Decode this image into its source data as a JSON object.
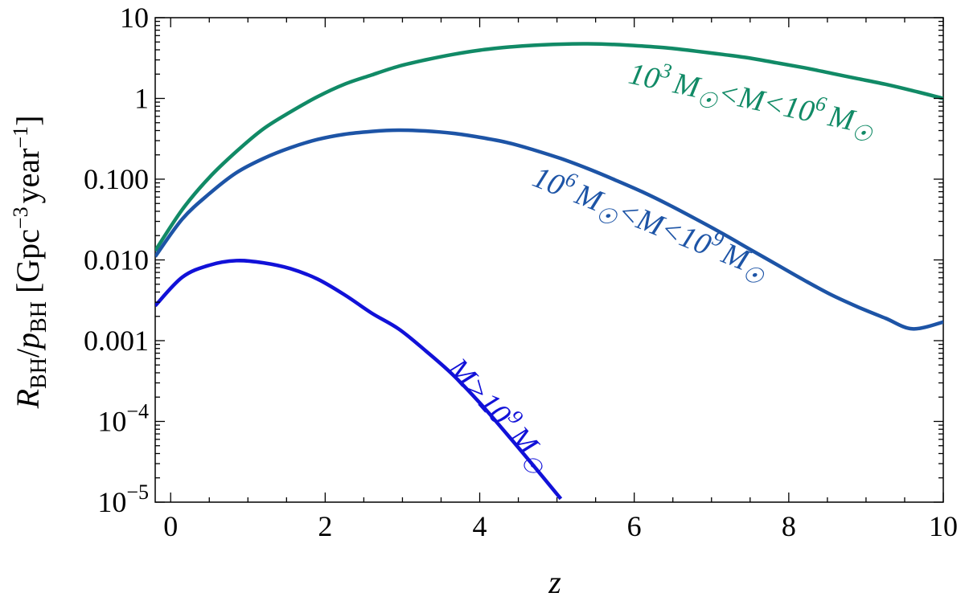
{
  "chart_data": {
    "type": "line",
    "xlabel": "z",
    "ylabel_main": "R",
    "ylabel_main_sub": "BH",
    "ylabel_slash": "/",
    "ylabel_p": "p",
    "ylabel_p_sub": "BH",
    "ylabel_units_open": "[Gpc",
    "ylabel_units_exp1": "−3",
    "ylabel_units_mid": "year",
    "ylabel_units_exp2": "−1",
    "ylabel_units_close": "]",
    "xlim": [
      -0.2,
      10
    ],
    "ylim": [
      1e-05,
      10
    ],
    "yscale": "log",
    "x_ticks": [
      {
        "value": 0,
        "label": "0"
      },
      {
        "value": 2,
        "label": "2"
      },
      {
        "value": 4,
        "label": "4"
      },
      {
        "value": 6,
        "label": "6"
      },
      {
        "value": 8,
        "label": "8"
      },
      {
        "value": 10,
        "label": "10"
      }
    ],
    "y_ticks": [
      {
        "value": 10,
        "label": "10",
        "base": "",
        "exp": ""
      },
      {
        "value": 1,
        "label": "1",
        "base": "",
        "exp": ""
      },
      {
        "value": 0.1,
        "label": "0.100",
        "base": "",
        "exp": ""
      },
      {
        "value": 0.01,
        "label": "0.010",
        "base": "",
        "exp": ""
      },
      {
        "value": 0.001,
        "label": "0.001",
        "base": "",
        "exp": ""
      },
      {
        "value": 0.0001,
        "label": "",
        "base": "10",
        "exp": "−4"
      },
      {
        "value": 1e-05,
        "label": "",
        "base": "10",
        "exp": "−5"
      }
    ],
    "series": [
      {
        "name": "10^3 M☉ < M < 10^6 M☉",
        "label_parts": [
          "10",
          "3",
          "M",
          "☉",
          "<",
          "M",
          "<",
          "10",
          "6",
          "M",
          "☉"
        ],
        "color": "#118a66",
        "x": [
          -0.2,
          0.15,
          0.5,
          0.85,
          1.2,
          1.55,
          1.9,
          2.25,
          2.6,
          2.95,
          3.3,
          3.65,
          4.0,
          4.35,
          4.7,
          5.05,
          5.4,
          5.75,
          6.1,
          6.45,
          6.8,
          7.15,
          7.5,
          7.85,
          8.2,
          8.55,
          8.9,
          9.25,
          9.6,
          10.0
        ],
        "y": [
          0.013,
          0.042,
          0.105,
          0.22,
          0.42,
          0.68,
          1.05,
          1.5,
          1.95,
          2.5,
          3.0,
          3.5,
          3.95,
          4.3,
          4.55,
          4.7,
          4.75,
          4.65,
          4.45,
          4.2,
          3.85,
          3.5,
          3.15,
          2.75,
          2.4,
          2.05,
          1.75,
          1.5,
          1.25,
          1.0
        ]
      },
      {
        "name": "10^6 M☉ < M < 10^9 M☉",
        "label_parts": [
          "10",
          "6",
          "M",
          "☉",
          "<",
          "M",
          "<",
          "10",
          "9",
          "M",
          "☉"
        ],
        "color": "#1d54a6",
        "x": [
          -0.2,
          0.15,
          0.5,
          0.85,
          1.2,
          1.55,
          1.9,
          2.25,
          2.6,
          2.95,
          3.3,
          3.65,
          4.0,
          4.35,
          4.7,
          5.05,
          5.4,
          5.75,
          6.1,
          6.45,
          6.8,
          7.15,
          7.5,
          7.85,
          8.2,
          8.55,
          8.9,
          9.25,
          9.6,
          10.0
        ],
        "y": [
          0.011,
          0.032,
          0.066,
          0.12,
          0.18,
          0.245,
          0.31,
          0.36,
          0.39,
          0.405,
          0.395,
          0.37,
          0.33,
          0.285,
          0.23,
          0.18,
          0.135,
          0.098,
          0.07,
          0.048,
          0.032,
          0.021,
          0.0135,
          0.0087,
          0.0056,
          0.0037,
          0.0026,
          0.0019,
          0.0014,
          0.0017
        ]
      },
      {
        "name": "M > 10^9 M☉",
        "label_parts": [
          "M",
          ">",
          "10",
          "9",
          "M",
          "☉"
        ],
        "color": "#1111d8",
        "x": [
          -0.2,
          0.15,
          0.5,
          0.85,
          1.2,
          1.55,
          1.9,
          2.25,
          2.6,
          2.95,
          3.3,
          3.65,
          4.0,
          4.35,
          4.7,
          5.05
        ],
        "y": [
          0.0027,
          0.0061,
          0.0086,
          0.0098,
          0.0092,
          0.0078,
          0.0058,
          0.0037,
          0.0022,
          0.0014,
          0.00075,
          0.00038,
          0.00017,
          7e-05,
          2.8e-05,
          1.1e-05
        ]
      }
    ]
  }
}
